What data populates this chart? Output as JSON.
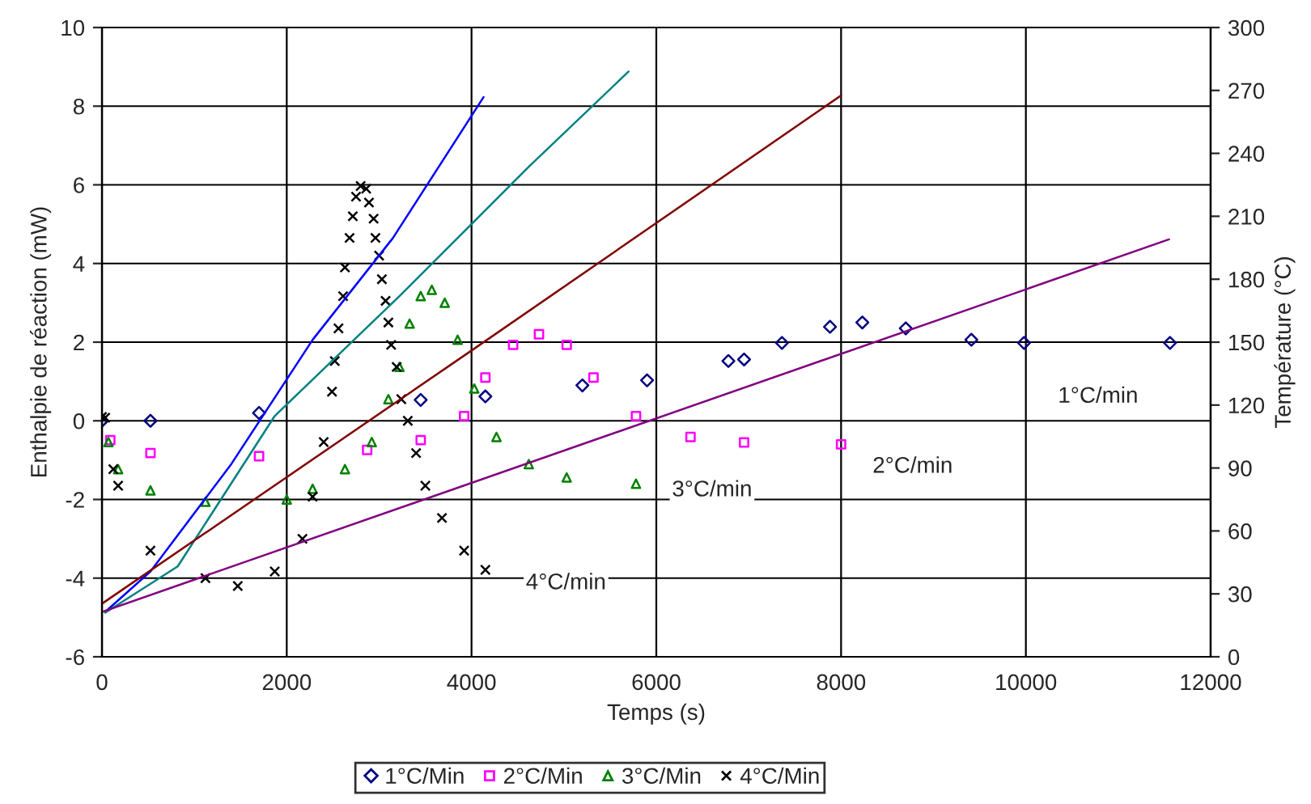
{
  "chart_data": {
    "type": "scatter",
    "xlabel": "Temps (s)",
    "ylabel": "Enthalpie de réaction (mW)",
    "y2label": "Température (°C)",
    "xlim": [
      0,
      12000
    ],
    "xticks": [
      0,
      2000,
      4000,
      6000,
      8000,
      10000,
      12000
    ],
    "ylim": [
      -6,
      10
    ],
    "yticks": [
      -6,
      -4,
      -2,
      0,
      2,
      4,
      6,
      8,
      10
    ],
    "y2lim": [
      0,
      300
    ],
    "y2ticks": [
      0,
      30,
      60,
      90,
      120,
      150,
      180,
      210,
      240,
      270,
      300
    ],
    "grid": true,
    "legend": "bottom",
    "series": [
      {
        "name": "1°C/Min",
        "color": "#000080",
        "marker": "diamond",
        "x": [
          0,
          525,
          1700,
          3450,
          4150,
          5200,
          5900,
          6780,
          6950,
          7360,
          7880,
          8230,
          8700,
          9410,
          9980,
          11560
        ],
        "values": [
          0,
          0.0,
          0.2,
          0.53,
          0.62,
          0.9,
          1.03,
          1.52,
          1.56,
          1.98,
          2.39,
          2.5,
          2.35,
          2.06,
          1.98,
          1.98
        ]
      },
      {
        "name": "2°C/Min",
        "color": "#ff00ff",
        "marker": "square",
        "x": [
          90,
          525,
          1700,
          2870,
          3450,
          3920,
          4150,
          4450,
          4730,
          5030,
          5320,
          5780,
          6370,
          6950,
          8000
        ],
        "values": [
          -0.49,
          -0.82,
          -0.9,
          -0.74,
          -0.49,
          0.12,
          1.1,
          1.93,
          2.2,
          1.93,
          1.1,
          0.12,
          -0.41,
          -0.55,
          -0.6
        ]
      },
      {
        "name": "3°C/Min",
        "color": "#008000",
        "marker": "triangle",
        "x": [
          70,
          175,
          525,
          1120,
          2000,
          2280,
          2630,
          2920,
          3100,
          3220,
          3330,
          3450,
          3570,
          3710,
          3850,
          4030,
          4270,
          4620,
          5030,
          5780
        ],
        "values": [
          -0.54,
          -1.23,
          -1.77,
          -2.06,
          -2.0,
          -1.73,
          -1.23,
          -0.54,
          0.55,
          1.37,
          2.47,
          3.17,
          3.33,
          3.0,
          2.06,
          0.82,
          -0.41,
          -1.1,
          -1.44,
          -1.6
        ]
      },
      {
        "name": "4°C/Min",
        "color": "#000000",
        "marker": "cross",
        "x": [
          0,
          35,
          123,
          175,
          525,
          1120,
          1470,
          1870,
          2170,
          2280,
          2400,
          2490,
          2520,
          2560,
          2610,
          2630,
          2680,
          2715,
          2750,
          2800,
          2860,
          2890,
          2940,
          2960,
          3000,
          3030,
          3070,
          3100,
          3130,
          3190,
          3240,
          3310,
          3400,
          3500,
          3680,
          3920,
          4150
        ],
        "values": [
          0.1,
          0.08,
          -1.23,
          -1.65,
          -3.3,
          -4.0,
          -4.2,
          -3.83,
          -3.0,
          -1.93,
          -0.54,
          0.74,
          1.52,
          2.35,
          3.17,
          3.9,
          4.65,
          5.2,
          5.7,
          5.97,
          5.9,
          5.55,
          5.14,
          4.65,
          4.2,
          3.6,
          3.05,
          2.5,
          1.93,
          1.37,
          0.55,
          0,
          -0.82,
          -1.65,
          -2.47,
          -3.3,
          -3.79
        ]
      },
      {
        "type": "line",
        "axis": "y2",
        "color": "#0000ff",
        "x": [
          35,
          525,
          1400,
          2280,
          3150,
          4130
        ],
        "values": [
          21.4,
          40.7,
          91.9,
          151.1,
          199.7,
          266.8
        ]
      },
      {
        "type": "line",
        "axis": "y2",
        "color": "#008080",
        "x": [
          35,
          820,
          1870,
          3220,
          4620,
          5700
        ],
        "values": [
          21,
          43.1,
          114.8,
          171.9,
          233.6,
          279
        ]
      },
      {
        "type": "line",
        "axis": "y2",
        "color": "#800000",
        "x": [
          0,
          4000,
          8000
        ],
        "values": [
          25.3,
          146,
          267.6
        ]
      },
      {
        "type": "line",
        "axis": "y2",
        "color": "#800080",
        "x": [
          0,
          11550
        ],
        "values": [
          21.4,
          199
        ]
      }
    ],
    "annotations": [
      "1°C/min",
      "2°C/min",
      "3°C/min",
      "4°C/min"
    ]
  }
}
